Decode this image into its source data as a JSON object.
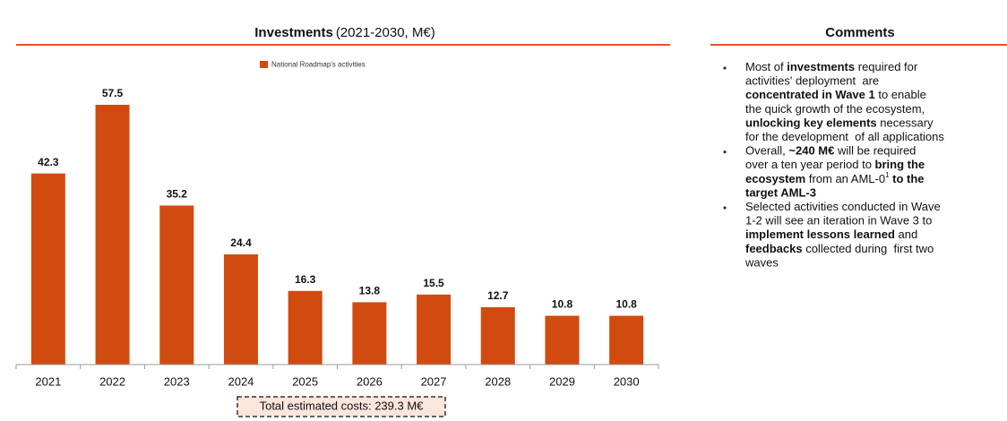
{
  "chart_data": {
    "type": "bar",
    "title": "Investments",
    "subtitle": "(2021-2030, M€)",
    "categories": [
      "2021",
      "2022",
      "2023",
      "2024",
      "2025",
      "2026",
      "2027",
      "2028",
      "2029",
      "2030"
    ],
    "series": [
      {
        "name": "National Roadmap's activities",
        "color": "#d14a10",
        "values": [
          42.3,
          57.5,
          35.2,
          24.4,
          16.3,
          13.8,
          15.5,
          12.7,
          10.8,
          10.8
        ]
      }
    ],
    "annotation": "Total estimated costs: 239.3 M€"
  },
  "comments": {
    "title": "Comments",
    "bullets": [
      [
        [
          {
            "text": "Most of "
          },
          {
            "text": "investments",
            "bold": true
          },
          {
            "text": " required for"
          }
        ],
        [
          {
            "text": "activities' deployment  are"
          }
        ],
        [
          {
            "text": "concentrated in Wave 1",
            "bold": true
          },
          {
            "text": " to enable"
          }
        ],
        [
          {
            "text": "the quick growth of the ecosystem,"
          }
        ],
        [
          {
            "text": "unlocking key elements",
            "bold": true
          },
          {
            "text": " necessary"
          }
        ],
        [
          {
            "text": "for the development  of all applications"
          }
        ]
      ],
      [
        [
          {
            "text": "Overall, "
          },
          {
            "text": "~240 M€",
            "bold": true
          },
          {
            "text": " will be required"
          }
        ],
        [
          {
            "text": "over a ten year period to "
          },
          {
            "text": "bring the",
            "bold": true
          }
        ],
        [
          {
            "text": "ecosystem",
            "bold": true
          },
          {
            "text": " from an AML-0"
          },
          {
            "text": "1",
            "sup": true
          },
          {
            "text": " to the",
            "bold": true
          }
        ],
        [
          {
            "text": "target AML-3",
            "bold": true
          }
        ]
      ],
      [
        [
          {
            "text": "Selected activities conducted in Wave"
          }
        ],
        [
          {
            "text": "1-2 will see an iteration in Wave 3 to"
          }
        ],
        [
          {
            "text": "implement lessons learned",
            "bold": true
          },
          {
            "text": " and"
          }
        ],
        [
          {
            "text": "feedbacks",
            "bold": true
          },
          {
            "text": " collected during  first two"
          }
        ],
        [
          {
            "text": "waves"
          }
        ]
      ]
    ]
  }
}
